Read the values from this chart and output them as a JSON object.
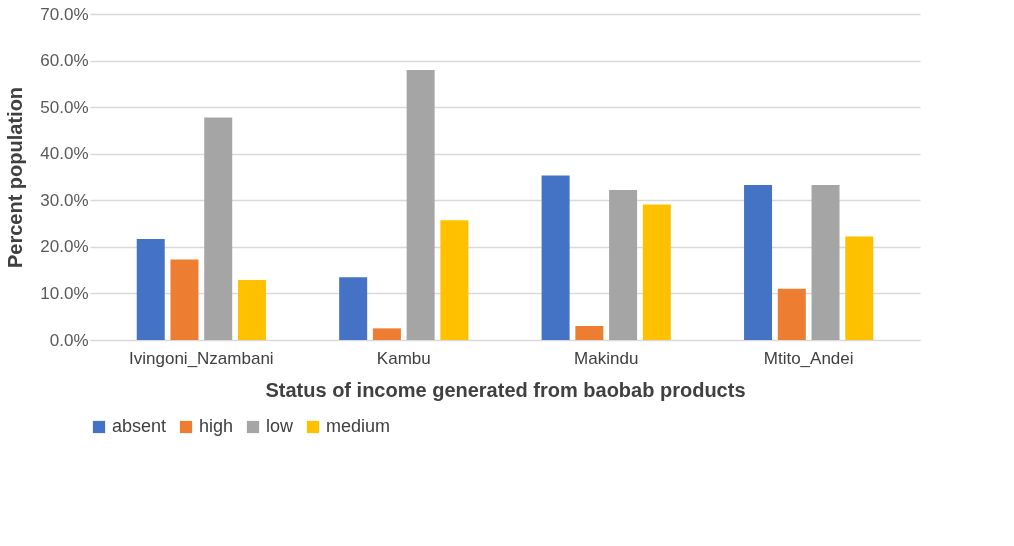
{
  "chart_data": {
    "type": "bar",
    "xlabel": "Status of income generated from baobab products",
    "ylabel": "Percent population",
    "categories": [
      "Ivingoni_Nzambani",
      "Kambu",
      "Makindu",
      "Mtito_Andei"
    ],
    "series": [
      {
        "name": "absent",
        "color": "#4472c4",
        "values": [
          21.7,
          13.5,
          35.3,
          33.3
        ]
      },
      {
        "name": "high",
        "color": "#ed7d31",
        "values": [
          17.3,
          2.5,
          3.0,
          11.0
        ]
      },
      {
        "name": "low",
        "color": "#a5a5a5",
        "values": [
          47.8,
          58.0,
          32.2,
          33.3
        ]
      },
      {
        "name": "medium",
        "color": "#ffc000",
        "values": [
          12.9,
          25.7,
          29.1,
          22.2
        ]
      }
    ],
    "ylim": [
      0,
      70
    ],
    "yticks": [
      {
        "value": 0,
        "label": "0.0%"
      },
      {
        "value": 10,
        "label": "10.0%"
      },
      {
        "value": 20,
        "label": "20.0%"
      },
      {
        "value": 30,
        "label": "30.0%"
      },
      {
        "value": 40,
        "label": "40.0%"
      },
      {
        "value": 50,
        "label": "50.0%"
      },
      {
        "value": 60,
        "label": "60.0%"
      },
      {
        "value": 70,
        "label": "70.0%"
      }
    ],
    "grid": "y",
    "legend": "bottom"
  }
}
